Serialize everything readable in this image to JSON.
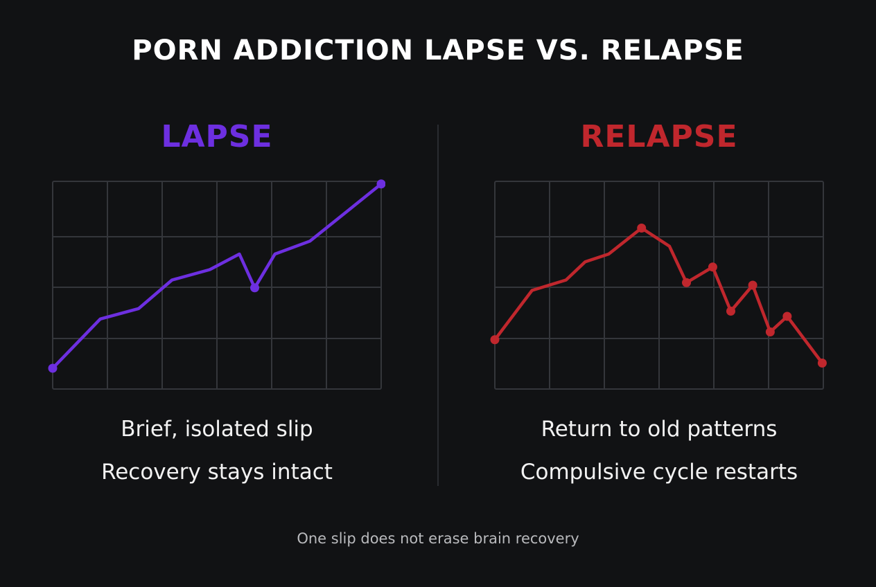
{
  "title": "PORN ADDICTION LAPSE VS. RELAPSE",
  "footer": "One slip does not erase brain recovery",
  "colors": {
    "background": "#111214",
    "lapse": "#6d2fe0",
    "relapse": "#c0272d",
    "grid": "#34363b"
  },
  "chart_data": [
    {
      "type": "line",
      "title": "LAPSE",
      "captions": [
        "Brief, isolated slip",
        "Recovery stays intact"
      ],
      "color": "#6d2fe0",
      "grid": true,
      "xlim": [
        0,
        6
      ],
      "ylim": [
        0,
        4
      ],
      "x": [
        0,
        0.87,
        1.57,
        2.18,
        2.87,
        3.41,
        3.69,
        4.06,
        4.7,
        6
      ],
      "values": [
        0.4,
        1.35,
        1.55,
        2.1,
        2.3,
        2.6,
        1.95,
        2.6,
        2.85,
        3.95
      ],
      "markers": [
        0,
        6,
        9
      ]
    },
    {
      "type": "line",
      "title": "RELAPSE",
      "captions": [
        "Return to old patterns",
        "Compulsive cycle restarts"
      ],
      "color": "#c0272d",
      "grid": true,
      "xlim": [
        0,
        6
      ],
      "ylim": [
        0,
        4
      ],
      "x": [
        0,
        0.68,
        1.3,
        1.65,
        2.08,
        2.68,
        3.19,
        3.5,
        3.98,
        4.31,
        4.71,
        5.03,
        5.34,
        5.98
      ],
      "values": [
        0.95,
        1.9,
        2.1,
        2.45,
        2.6,
        3.1,
        2.75,
        2.05,
        2.35,
        1.5,
        2.0,
        1.1,
        1.4,
        0.5
      ],
      "markers": [
        0,
        5,
        7,
        8,
        9,
        10,
        11,
        12,
        13
      ]
    }
  ]
}
